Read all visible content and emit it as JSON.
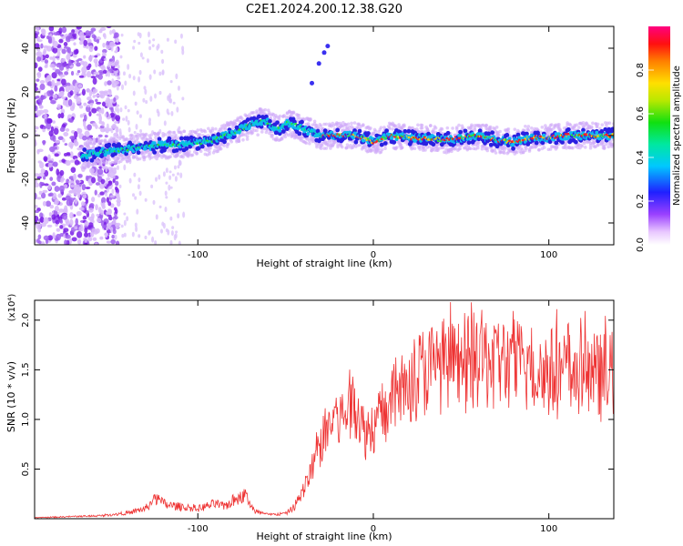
{
  "title": "C2E1.2024.200.12.38.G20",
  "chart_data": [
    {
      "type": "heatmap",
      "xlabel": "Height of straight line (km)",
      "ylabel": "Frequency (Hz)",
      "xlim": [
        -193,
        137
      ],
      "ylim": [
        -50,
        50
      ],
      "xticks": [
        -100,
        0,
        100
      ],
      "yticks": [
        -40,
        -20,
        0,
        20,
        40
      ],
      "colorbar": {
        "label": "Normalized spectral amplitude",
        "range": [
          0,
          1
        ],
        "ticks": [
          0.0,
          0.2,
          0.4,
          0.6,
          0.8
        ]
      },
      "ridge": {
        "x": [
          -165,
          -150,
          -130,
          -110,
          -95,
          -80,
          -70,
          -62,
          -55,
          -48,
          -40,
          -30,
          -20,
          -10,
          -5,
          0,
          10,
          20,
          30,
          40,
          50,
          60,
          70,
          80,
          90,
          100,
          110,
          120,
          130,
          137
        ],
        "y": [
          -9,
          -7,
          -5,
          -4,
          -3,
          1,
          5,
          7,
          3,
          6,
          3,
          0,
          0,
          0,
          -1,
          -3,
          0,
          -1,
          -1,
          -2,
          -1,
          0,
          -2,
          -3,
          -1,
          -1,
          0,
          0,
          0,
          0
        ]
      }
    },
    {
      "type": "line",
      "xlabel": "Height of straight line (km)",
      "ylabel": "SNR (10 * v/v)",
      "y_multiplier": "(x10⁴)",
      "xlim": [
        -193,
        137
      ],
      "ylim": [
        0,
        2.2
      ],
      "xticks": [
        -100,
        0,
        100
      ],
      "yticks": [
        0.5,
        1.0,
        1.5,
        2.0
      ],
      "series": [
        {
          "color": "#ee3333",
          "x": [
            -193,
            -175,
            -155,
            -140,
            -130,
            -124,
            -118,
            -110,
            -100,
            -90,
            -85,
            -80,
            -73,
            -68,
            -60,
            -50,
            -45,
            -40,
            -35,
            -30,
            -25,
            -20,
            -15,
            -10,
            -5,
            0,
            5,
            10,
            15,
            20,
            25,
            30,
            40,
            50,
            60,
            70,
            80,
            90,
            100,
            110,
            120,
            130,
            137
          ],
          "y": [
            0.01,
            0.02,
            0.03,
            0.06,
            0.1,
            0.2,
            0.14,
            0.12,
            0.1,
            0.15,
            0.12,
            0.18,
            0.24,
            0.08,
            0.04,
            0.05,
            0.12,
            0.28,
            0.5,
            0.75,
            0.95,
            1.0,
            1.05,
            1.2,
            0.85,
            0.95,
            1.05,
            1.15,
            1.3,
            1.35,
            1.45,
            1.5,
            1.55,
            1.52,
            1.6,
            1.58,
            1.55,
            1.5,
            1.48,
            1.45,
            1.45,
            1.42,
            1.45
          ]
        }
      ]
    }
  ]
}
